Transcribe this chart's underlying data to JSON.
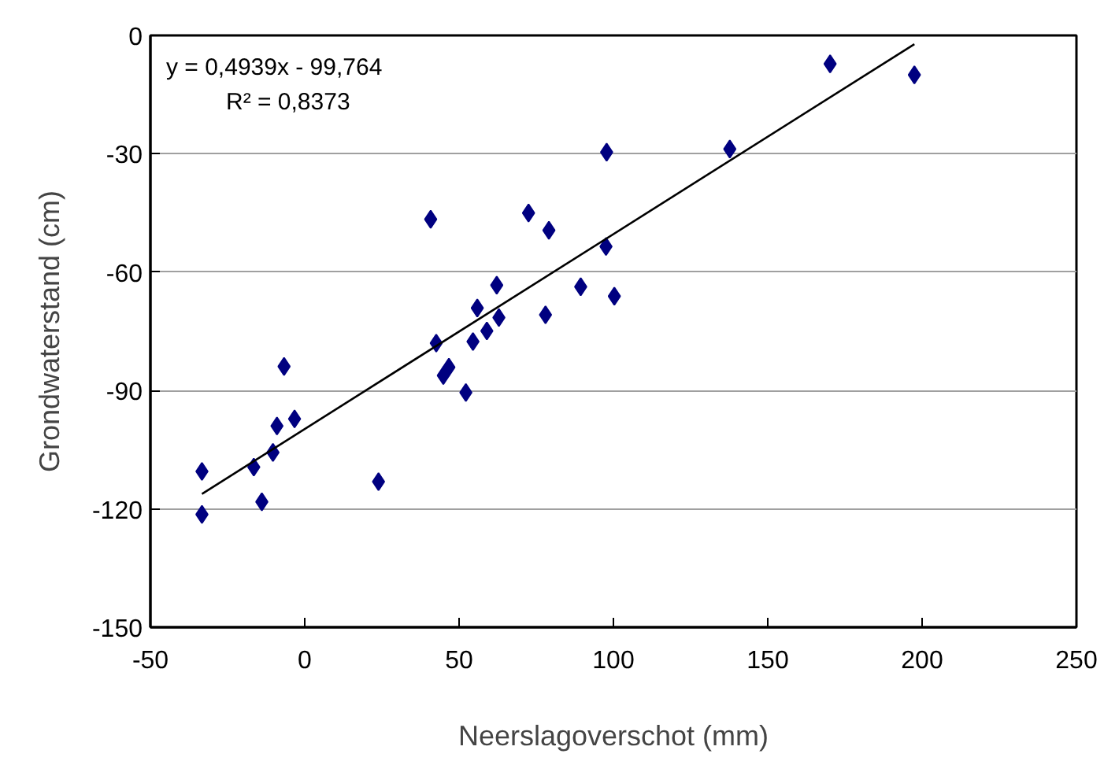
{
  "chart_data": {
    "type": "scatter",
    "xlabel": "Neerslagoverschot (mm)",
    "ylabel": "Grondwaterstand (cm)",
    "annotations": [
      "y = 0,4939x - 99,764",
      "R² = 0,8373"
    ],
    "xlim": [
      -50,
      250
    ],
    "xticks": [
      -50,
      0,
      50,
      100,
      150,
      200,
      250
    ],
    "ylim": [
      -150,
      0
    ],
    "yticks": [
      -150,
      -120,
      -90,
      -60,
      -30,
      0
    ],
    "grid": "y",
    "series": [
      {
        "color": "#000080",
        "marker": "diamond",
        "x": [
          -33.3,
          -33.3,
          -16.5,
          -13.9,
          -10.3,
          -9.0,
          -6.7,
          -3.3,
          23.9,
          40.8,
          42.6,
          44.9,
          46.7,
          52.2,
          54.5,
          55.9,
          59.0,
          62.2,
          62.9,
          72.5,
          78.0,
          79.1,
          89.4,
          97.6,
          97.8,
          100.3,
          137.7,
          170.2,
          197.5
        ],
        "values": [
          -110.5,
          -121.4,
          -109.4,
          -118.2,
          -105.7,
          -99.0,
          -83.9,
          -97.2,
          -113.1,
          -46.6,
          -78.0,
          -86.2,
          -84.1,
          -90.5,
          -77.6,
          -69.1,
          -74.9,
          -63.3,
          -71.5,
          -45.0,
          -70.8,
          -49.4,
          -63.7,
          -53.5,
          -29.6,
          -66.1,
          -28.8,
          -7.2,
          -10.0
        ]
      },
      {
        "type": "line",
        "color": "#000000",
        "marker": "none",
        "line_style": "solid",
        "x": [
          -33.3,
          197.5
        ],
        "values": [
          -116.2,
          -2.2
        ]
      }
    ]
  }
}
